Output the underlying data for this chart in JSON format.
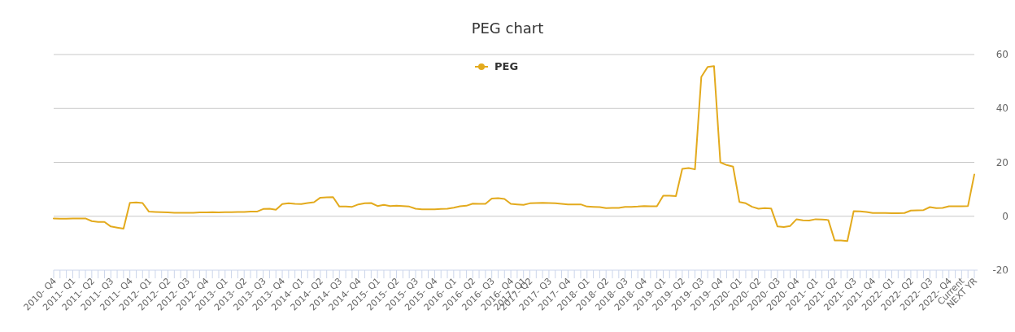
{
  "chart_data": {
    "type": "line",
    "title": "PEG chart",
    "categories": [
      "2010- Q4",
      null,
      null,
      "2011- Q1",
      null,
      null,
      "2011- Q2",
      null,
      null,
      "2011- Q3",
      null,
      null,
      "2011- Q4",
      null,
      null,
      "2012- Q1",
      null,
      null,
      "2012- Q2",
      null,
      null,
      "2012- Q3",
      null,
      null,
      "2012- Q4",
      null,
      null,
      "2013- Q1",
      null,
      null,
      "2013- Q2",
      null,
      null,
      "2013- Q3",
      null,
      null,
      "2013- Q4",
      null,
      null,
      "2014- Q1",
      null,
      null,
      "2014- Q2",
      null,
      null,
      "2014- Q3",
      null,
      null,
      "2014- Q4",
      null,
      null,
      "2015- Q1",
      null,
      null,
      "2015- Q2",
      null,
      null,
      "2015- Q3",
      null,
      null,
      "2015- Q4",
      null,
      null,
      "2016- Q1",
      null,
      null,
      "2016- Q2",
      null,
      null,
      "2016- Q3",
      null,
      null,
      "2016- Q4",
      null,
      "2017- Q1",
      "2017- Q2",
      null,
      null,
      "2017- Q3",
      null,
      null,
      "2017- Q4",
      null,
      null,
      "2018- Q1",
      null,
      null,
      "2018- Q2",
      null,
      null,
      "2018- Q3",
      null,
      null,
      "2018- Q4",
      null,
      null,
      "2019- Q1",
      null,
      null,
      "2019- Q2",
      null,
      null,
      "2019- Q3",
      null,
      null,
      "2019- Q4",
      null,
      null,
      "2020- Q1",
      null,
      null,
      "2020- Q2",
      null,
      null,
      "2020- Q3",
      null,
      null,
      "2020- Q4",
      null,
      null,
      "2021- Q1",
      null,
      null,
      "2021- Q2",
      null,
      null,
      "2021- Q3",
      null,
      null,
      "2021- Q4",
      null,
      null,
      "2022- Q1",
      null,
      null,
      "2022- Q2",
      null,
      null,
      "2022- Q3",
      null,
      null,
      "2022- Q4",
      null,
      "Current",
      null,
      "NEXT YR"
    ],
    "series": [
      {
        "name": "PEG",
        "color": "#e3aa1d",
        "values": [
          -0.8,
          -0.9,
          -0.9,
          -0.8,
          -0.8,
          -0.8,
          -1.8,
          -2.1,
          -2.1,
          -3.8,
          -4.2,
          -4.6,
          5,
          5.1,
          4.9,
          1.7,
          1.6,
          1.5,
          1.4,
          1.3,
          1.3,
          1.3,
          1.3,
          1.4,
          1.4,
          1.5,
          1.4,
          1.5,
          1.5,
          1.6,
          1.6,
          1.7,
          1.7,
          2.7,
          2.8,
          2.4,
          4.5,
          4.8,
          4.6,
          4.5,
          4.9,
          5.2,
          6.9,
          7,
          7.1,
          3.6,
          3.6,
          3.5,
          4.4,
          4.8,
          4.9,
          3.8,
          4.2,
          3.8,
          3.9,
          3.8,
          3.6,
          2.8,
          2.6,
          2.6,
          2.6,
          2.7,
          2.8,
          3.2,
          3.7,
          3.9,
          4.7,
          4.6,
          4.6,
          6.6,
          6.7,
          6.4,
          4.6,
          4.4,
          4.2,
          4.8,
          4.9,
          5,
          4.9,
          4.8,
          4.6,
          4.4,
          4.4,
          4.4,
          3.6,
          3.5,
          3.4,
          3,
          3.1,
          3.1,
          3.5,
          3.5,
          3.6,
          3.8,
          3.7,
          3.7,
          7.6,
          7.6,
          7.5,
          17.6,
          17.9,
          17.4,
          51.7,
          55.4,
          55.7,
          20,
          19,
          18.4,
          5.3,
          4.8,
          3.5,
          2.8,
          3,
          2.9,
          -3.8,
          -4,
          -3.6,
          -1.1,
          -1.5,
          -1.6,
          -1.1,
          -1.2,
          -1.4,
          -9,
          -9,
          -9.2,
          1.9,
          1.8,
          1.6,
          1.2,
          1.2,
          1.2,
          1.1,
          1.1,
          1.2,
          2.1,
          2.2,
          2.3,
          3.4,
          3,
          3.1,
          3.7,
          3.7,
          3.7,
          3.8,
          15.5
        ]
      }
    ],
    "ylim": [
      -20,
      60
    ],
    "yticks": [
      -20,
      0,
      20,
      40,
      60
    ],
    "grid": "y",
    "legend": "top"
  }
}
